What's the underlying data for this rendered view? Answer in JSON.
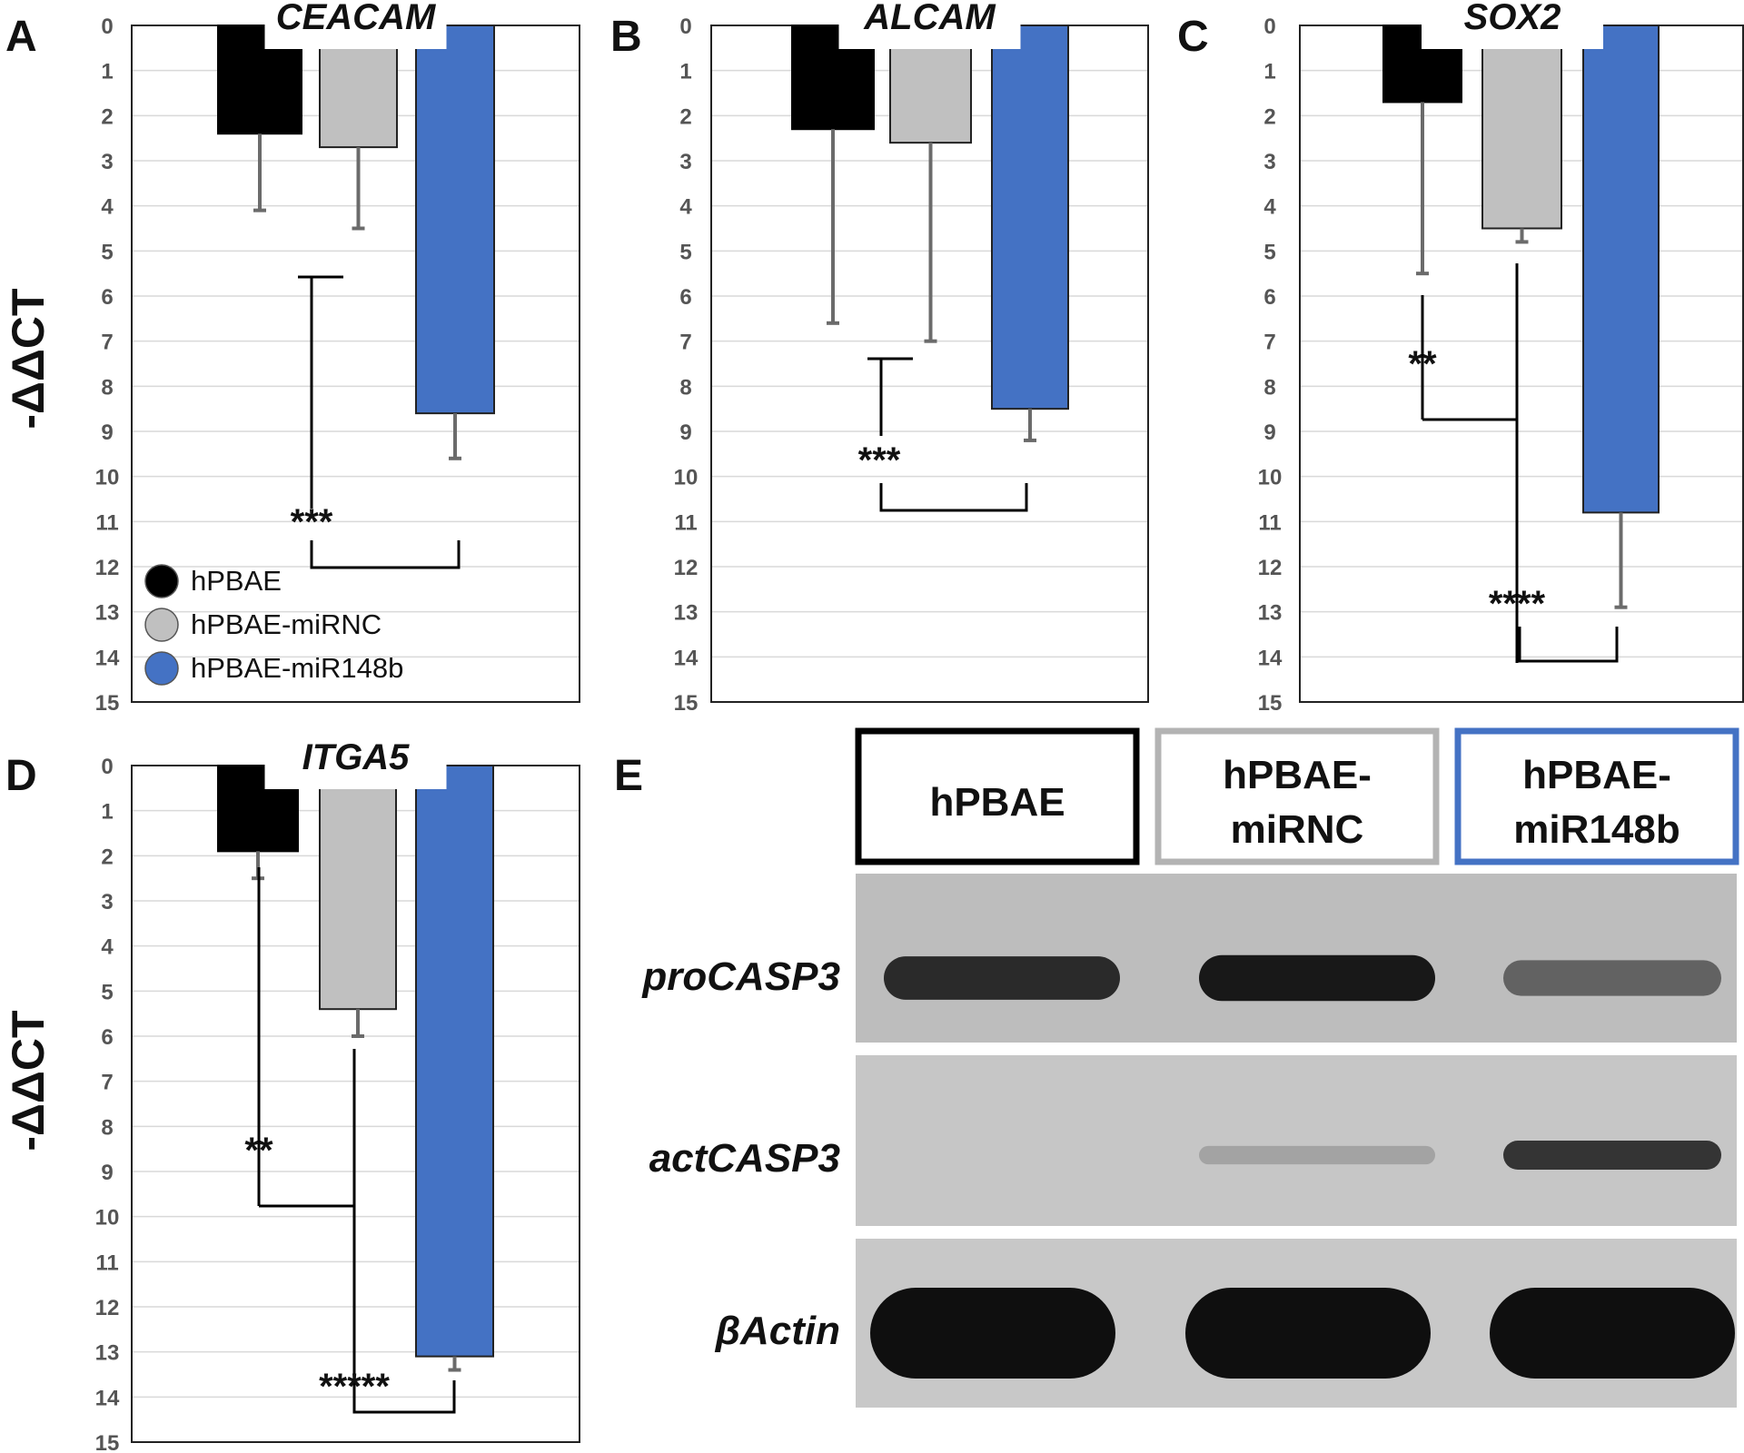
{
  "panel_letters": [
    "A",
    "B",
    "C",
    "D",
    "E"
  ],
  "y_axis_label": "-ΔΔCT",
  "legend": {
    "entries": [
      {
        "label": "hPBAE",
        "color": "#000000"
      },
      {
        "label": "hPBAE-miRNC",
        "color": "#c0c0c0"
      },
      {
        "label": "hPBAE-miR148b",
        "color": "#4472c4"
      }
    ]
  },
  "colors": {
    "hPBAE": "#000000",
    "hPBAE-miRNC": "#c0c0c0",
    "hPBAE-miR148b": "#4472c4",
    "error_bar": "#6b6b6b",
    "gridline": "#d9d9d9"
  },
  "chart_data": [
    {
      "panel": "A",
      "type": "bar",
      "title": "CEACAM",
      "ylabel": "-ΔΔCT",
      "ylim": [
        0,
        15
      ],
      "y_inverted": true,
      "yticks": [
        "0",
        "1",
        "2",
        "3",
        "4",
        "5",
        "6",
        "7",
        "8",
        "9",
        "10",
        "11",
        "12",
        "13",
        "14",
        "15"
      ],
      "grid": true,
      "legend_position": "bottom-left",
      "categories": [
        "hPBAE",
        "hPBAE-miRNC",
        "hPBAE-miR148b"
      ],
      "values": [
        2.4,
        2.7,
        8.6
      ],
      "error_upper": [
        4.1,
        4.5,
        9.6
      ],
      "significance": [
        {
          "label": "***",
          "groups": [
            "hPBAE / hPBAE-miRNC",
            "hPBAE-miR148b"
          ]
        }
      ]
    },
    {
      "panel": "B",
      "type": "bar",
      "title": "ALCAM",
      "ylabel": "",
      "ylim": [
        0,
        15
      ],
      "y_inverted": true,
      "yticks": [
        "0",
        "1",
        "2",
        "3",
        "4",
        "5",
        "6",
        "7",
        "8",
        "9",
        "10",
        "11",
        "12",
        "13",
        "14",
        "15"
      ],
      "grid": true,
      "categories": [
        "hPBAE",
        "hPBAE-miRNC",
        "hPBAE-miR148b"
      ],
      "values": [
        2.3,
        2.6,
        8.5
      ],
      "error_upper": [
        6.6,
        7.0,
        9.2
      ],
      "significance": [
        {
          "label": "***",
          "groups": [
            "hPBAE / hPBAE-miRNC",
            "hPBAE-miR148b"
          ]
        }
      ]
    },
    {
      "panel": "C",
      "type": "bar",
      "title": "SOX2",
      "ylabel": "",
      "ylim": [
        0,
        15
      ],
      "y_inverted": true,
      "yticks": [
        "0",
        "1",
        "2",
        "3",
        "4",
        "5",
        "6",
        "7",
        "8",
        "9",
        "10",
        "11",
        "12",
        "13",
        "14",
        "15"
      ],
      "grid": true,
      "categories": [
        "hPBAE",
        "hPBAE-miRNC",
        "hPBAE-miR148b"
      ],
      "values": [
        1.7,
        4.5,
        10.8
      ],
      "error_upper": [
        5.5,
        4.8,
        12.9
      ],
      "significance": [
        {
          "label": "**",
          "groups": [
            "hPBAE",
            "hPBAE-miRNC"
          ]
        },
        {
          "label": "****",
          "groups": [
            "hPBAE / hPBAE-miRNC",
            "hPBAE-miR148b"
          ]
        }
      ]
    },
    {
      "panel": "D",
      "type": "bar",
      "title": "ITGA5",
      "ylabel": "-ΔΔCT",
      "ylim": [
        0,
        15
      ],
      "y_inverted": true,
      "yticks": [
        "0",
        "1",
        "2",
        "3",
        "4",
        "5",
        "6",
        "7",
        "8",
        "9",
        "10",
        "11",
        "12",
        "13",
        "14",
        "15"
      ],
      "grid": true,
      "categories": [
        "hPBAE",
        "hPBAE-miRNC",
        "hPBAE-miR148b"
      ],
      "values": [
        1.9,
        5.4,
        13.1
      ],
      "error_upper": [
        2.5,
        6.0,
        13.4
      ],
      "significance": [
        {
          "label": "**",
          "groups": [
            "hPBAE",
            "hPBAE-miRNC"
          ]
        },
        {
          "label": "*****",
          "groups": [
            "hPBAE / hPBAE-miRNC",
            "hPBAE-miR148b"
          ]
        }
      ]
    }
  ],
  "western_blot": {
    "panel": "E",
    "columns": [
      {
        "label_lines": [
          "hPBAE"
        ],
        "border_color": "#000000"
      },
      {
        "label_lines": [
          "hPBAE-",
          "miRNC"
        ],
        "border_color": "#b3b3b3"
      },
      {
        "label_lines": [
          "hPBAE-",
          "miR148b"
        ],
        "border_color": "#4472c4"
      }
    ],
    "rows": [
      {
        "label": "proCASP3",
        "band_intensity": [
          0.85,
          0.95,
          0.55
        ]
      },
      {
        "label": "actCASP3",
        "band_intensity": [
          0.0,
          0.2,
          0.8
        ]
      },
      {
        "label": "βActin",
        "band_intensity": [
          1.0,
          1.0,
          1.0
        ]
      }
    ]
  }
}
